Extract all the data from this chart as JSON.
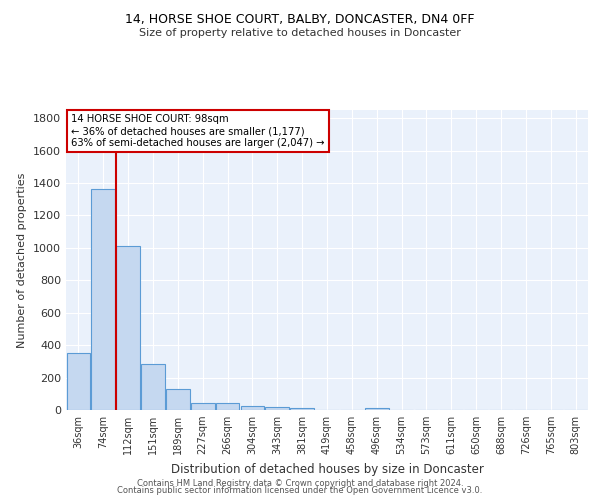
{
  "title1": "14, HORSE SHOE COURT, BALBY, DONCASTER, DN4 0FF",
  "title2": "Size of property relative to detached houses in Doncaster",
  "xlabel": "Distribution of detached houses by size in Doncaster",
  "ylabel": "Number of detached properties",
  "categories": [
    "36sqm",
    "74sqm",
    "112sqm",
    "151sqm",
    "189sqm",
    "227sqm",
    "266sqm",
    "304sqm",
    "343sqm",
    "381sqm",
    "419sqm",
    "458sqm",
    "496sqm",
    "534sqm",
    "573sqm",
    "611sqm",
    "650sqm",
    "688sqm",
    "726sqm",
    "765sqm",
    "803sqm"
  ],
  "values": [
    350,
    1360,
    1010,
    285,
    130,
    45,
    42,
    25,
    18,
    15,
    0,
    0,
    15,
    0,
    0,
    0,
    0,
    0,
    0,
    0,
    0
  ],
  "bar_color": "#c5d8f0",
  "bar_edge_color": "#5b9bd5",
  "vline_color": "#cc0000",
  "annotation_text": "14 HORSE SHOE COURT: 98sqm\n← 36% of detached houses are smaller (1,177)\n63% of semi-detached houses are larger (2,047) →",
  "annotation_box_color": "#ffffff",
  "annotation_box_edge_color": "#cc0000",
  "ylim": [
    0,
    1850
  ],
  "yticks": [
    0,
    200,
    400,
    600,
    800,
    1000,
    1200,
    1400,
    1600,
    1800
  ],
  "bg_color": "#eaf1fb",
  "grid_color": "#ffffff",
  "footer1": "Contains HM Land Registry data © Crown copyright and database right 2024.",
  "footer2": "Contains public sector information licensed under the Open Government Licence v3.0."
}
